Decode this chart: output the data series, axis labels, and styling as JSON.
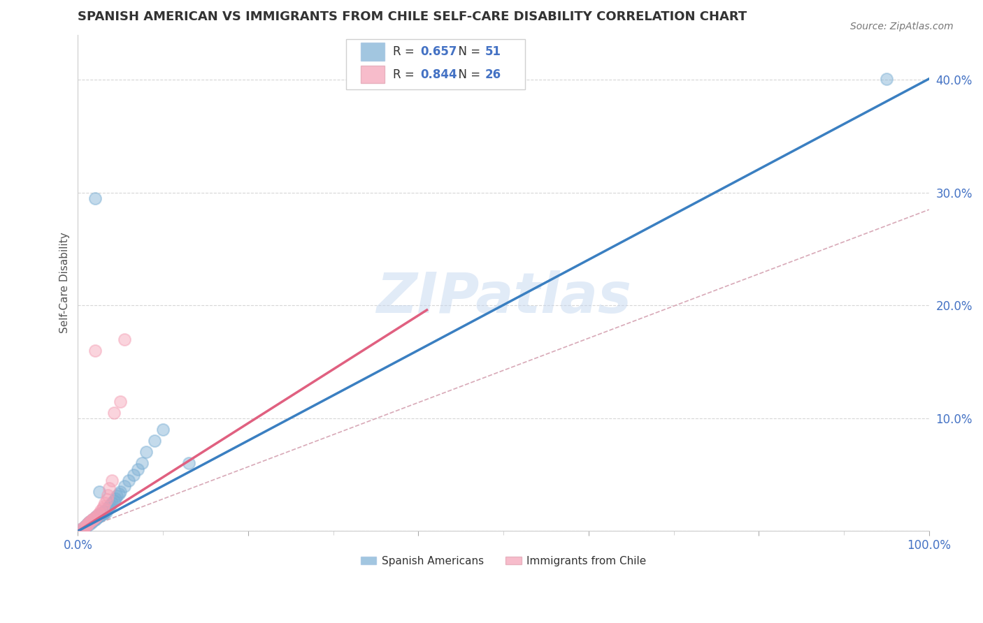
{
  "title": "SPANISH AMERICAN VS IMMIGRANTS FROM CHILE SELF-CARE DISABILITY CORRELATION CHART",
  "source": "Source: ZipAtlas.com",
  "ylabel": "Self-Care Disability",
  "watermark": "ZIPatlas",
  "r_blue": 0.657,
  "n_blue": 51,
  "r_pink": 0.844,
  "n_pink": 26,
  "xlim": [
    0,
    1.0
  ],
  "ylim": [
    0,
    0.44
  ],
  "yticks": [
    0.0,
    0.1,
    0.2,
    0.3,
    0.4
  ],
  "color_blue": "#7bafd4",
  "color_pink": "#f4a0b5",
  "line_color_blue": "#3a7fc1",
  "line_color_pink": "#e06080",
  "ref_line_color": "#d4a0b0",
  "blue_line_x": [
    0.0,
    1.0
  ],
  "blue_line_y": [
    0.0,
    0.401
  ],
  "pink_line_x": [
    0.0,
    0.41
  ],
  "pink_line_y": [
    0.0,
    0.196
  ],
  "ref_line_x": [
    0.0,
    1.0
  ],
  "ref_line_y": [
    0.0,
    0.285
  ],
  "scatter_blue_x": [
    0.005,
    0.007,
    0.008,
    0.009,
    0.01,
    0.01,
    0.012,
    0.013,
    0.014,
    0.015,
    0.015,
    0.016,
    0.017,
    0.018,
    0.019,
    0.02,
    0.02,
    0.021,
    0.022,
    0.023,
    0.024,
    0.025,
    0.026,
    0.027,
    0.028,
    0.029,
    0.03,
    0.031,
    0.032,
    0.033,
    0.035,
    0.037,
    0.038,
    0.04,
    0.042,
    0.044,
    0.046,
    0.048,
    0.05,
    0.055,
    0.06,
    0.065,
    0.07,
    0.075,
    0.08,
    0.09,
    0.1,
    0.02,
    0.95,
    0.13,
    0.025
  ],
  "scatter_blue_y": [
    0.002,
    0.003,
    0.004,
    0.003,
    0.005,
    0.006,
    0.007,
    0.006,
    0.008,
    0.007,
    0.009,
    0.008,
    0.01,
    0.009,
    0.011,
    0.01,
    0.012,
    0.011,
    0.013,
    0.012,
    0.014,
    0.013,
    0.015,
    0.014,
    0.016,
    0.015,
    0.017,
    0.016,
    0.018,
    0.017,
    0.02,
    0.022,
    0.023,
    0.025,
    0.027,
    0.029,
    0.031,
    0.033,
    0.035,
    0.04,
    0.045,
    0.05,
    0.055,
    0.06,
    0.07,
    0.08,
    0.09,
    0.295,
    0.401,
    0.06,
    0.035
  ],
  "scatter_pink_x": [
    0.005,
    0.007,
    0.008,
    0.01,
    0.011,
    0.012,
    0.014,
    0.015,
    0.017,
    0.018,
    0.02,
    0.022,
    0.024,
    0.025,
    0.027,
    0.029,
    0.03,
    0.032,
    0.034,
    0.035,
    0.037,
    0.04,
    0.042,
    0.05,
    0.055,
    0.02
  ],
  "scatter_pink_y": [
    0.002,
    0.003,
    0.004,
    0.005,
    0.006,
    0.007,
    0.008,
    0.009,
    0.01,
    0.011,
    0.012,
    0.013,
    0.015,
    0.016,
    0.018,
    0.02,
    0.022,
    0.025,
    0.028,
    0.032,
    0.038,
    0.045,
    0.105,
    0.115,
    0.17,
    0.16
  ],
  "bg_color": "#ffffff",
  "grid_color": "#cccccc",
  "title_color": "#333333",
  "tick_label_color": "#4472c4",
  "legend_text_color": "#333333",
  "legend_value_color": "#4472c4"
}
